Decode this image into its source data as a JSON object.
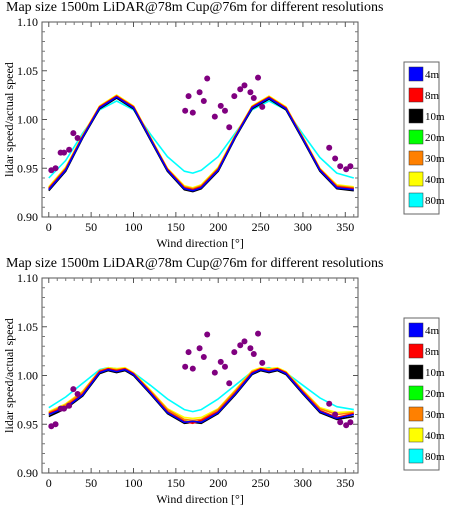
{
  "colors": {
    "4m": "#0000ff",
    "8m": "#ff0000",
    "10m": "#000000",
    "20m": "#00ff00",
    "30m": "#ff8000",
    "40m": "#ffff00",
    "80m": "#00ffff",
    "measured": "#800080"
  },
  "chart_data": [
    {
      "type": "line",
      "title": "Map size 1500m LiDAR@78m Cup@76m for different resolutions",
      "xlabel": "Wind direction [°]",
      "ylabel": "lidar speed/actual speed",
      "xlim": [
        -8,
        365
      ],
      "ylim": [
        0.9,
        1.1
      ],
      "xticks": [
        0,
        50,
        100,
        150,
        200,
        250,
        300,
        350
      ],
      "yticks": [
        0.9,
        0.95,
        1.0,
        1.05,
        1.1
      ],
      "legend": [
        "4m",
        "8m",
        "10m",
        "20m",
        "30m",
        "40m",
        "80m"
      ],
      "legend_position": "right",
      "series": [
        {
          "name": "4m",
          "x": [
            0,
            20,
            40,
            60,
            80,
            100,
            120,
            140,
            160,
            170,
            180,
            200,
            220,
            240,
            260,
            280,
            300,
            320,
            340,
            360
          ],
          "y": [
            0.928,
            0.948,
            0.982,
            1.012,
            1.023,
            1.012,
            0.98,
            0.948,
            0.929,
            0.927,
            0.93,
            0.948,
            0.982,
            1.012,
            1.022,
            1.011,
            0.98,
            0.948,
            0.93,
            0.928
          ]
        },
        {
          "name": "8m",
          "x": [
            0,
            20,
            40,
            60,
            80,
            100,
            120,
            140,
            160,
            170,
            180,
            200,
            220,
            240,
            260,
            280,
            300,
            320,
            340,
            360
          ],
          "y": [
            0.929,
            0.949,
            0.983,
            1.013,
            1.024,
            1.013,
            0.981,
            0.949,
            0.93,
            0.928,
            0.931,
            0.949,
            0.983,
            1.013,
            1.023,
            1.012,
            0.981,
            0.949,
            0.931,
            0.929
          ]
        },
        {
          "name": "10m",
          "x": [
            0,
            20,
            40,
            60,
            80,
            100,
            120,
            140,
            160,
            170,
            180,
            200,
            220,
            240,
            260,
            280,
            300,
            320,
            340,
            360
          ],
          "y": [
            0.927,
            0.947,
            0.981,
            1.011,
            1.022,
            1.011,
            0.979,
            0.947,
            0.928,
            0.926,
            0.929,
            0.947,
            0.981,
            1.011,
            1.021,
            1.01,
            0.979,
            0.947,
            0.929,
            0.927
          ]
        },
        {
          "name": "20m",
          "x": [
            0,
            20,
            40,
            60,
            80,
            100,
            120,
            140,
            160,
            170,
            180,
            200,
            220,
            240,
            260,
            280,
            300,
            320,
            340,
            360
          ],
          "y": [
            0.929,
            0.949,
            0.982,
            1.012,
            1.023,
            1.012,
            0.98,
            0.948,
            0.93,
            0.928,
            0.931,
            0.949,
            0.982,
            1.012,
            1.022,
            1.011,
            0.98,
            0.948,
            0.931,
            0.929
          ]
        },
        {
          "name": "30m",
          "x": [
            0,
            20,
            40,
            60,
            80,
            100,
            120,
            140,
            160,
            170,
            180,
            200,
            220,
            240,
            260,
            280,
            300,
            320,
            340,
            360
          ],
          "y": [
            0.93,
            0.95,
            0.983,
            1.013,
            1.024,
            1.013,
            0.981,
            0.949,
            0.931,
            0.929,
            0.932,
            0.95,
            0.983,
            1.013,
            1.023,
            1.012,
            0.981,
            0.949,
            0.932,
            0.93
          ]
        },
        {
          "name": "40m",
          "x": [
            0,
            20,
            40,
            60,
            80,
            100,
            120,
            140,
            160,
            170,
            180,
            200,
            220,
            240,
            260,
            280,
            300,
            320,
            340,
            360
          ],
          "y": [
            0.931,
            0.951,
            0.984,
            1.014,
            1.025,
            1.014,
            0.982,
            0.95,
            0.932,
            0.93,
            0.933,
            0.951,
            0.984,
            1.014,
            1.024,
            1.013,
            0.982,
            0.95,
            0.933,
            0.931
          ]
        },
        {
          "name": "80m",
          "x": [
            0,
            20,
            40,
            60,
            80,
            100,
            120,
            140,
            160,
            170,
            180,
            200,
            220,
            240,
            260,
            280,
            300,
            320,
            340,
            360
          ],
          "y": [
            0.94,
            0.958,
            0.986,
            1.01,
            1.019,
            1.01,
            0.985,
            0.962,
            0.947,
            0.945,
            0.948,
            0.962,
            0.986,
            1.01,
            1.019,
            1.01,
            0.985,
            0.961,
            0.945,
            0.94
          ]
        }
      ],
      "scatter": {
        "x": [
          3,
          8,
          14,
          18,
          24,
          29,
          34,
          161,
          165,
          170,
          178,
          183,
          187,
          196,
          203,
          208,
          213,
          219,
          226,
          231,
          238,
          242,
          247,
          252,
          331,
          338,
          344,
          351,
          356
        ],
        "y": [
          0.948,
          0.95,
          0.966,
          0.966,
          0.969,
          0.986,
          0.981,
          1.009,
          1.024,
          1.007,
          1.028,
          1.019,
          1.042,
          1.003,
          1.014,
          1.009,
          0.992,
          1.024,
          1.031,
          1.035,
          1.028,
          1.022,
          1.043,
          1.013,
          0.971,
          0.96,
          0.952,
          0.949,
          0.952
        ]
      }
    },
    {
      "type": "line",
      "title": "Map size 1500m LiDAR@78m Cup@76m for different resolutions",
      "xlabel": "Wind direction [°]",
      "ylabel": "lidar speed/actual speed",
      "xlim": [
        -8,
        365
      ],
      "ylim": [
        0.9,
        1.1
      ],
      "xticks": [
        0,
        50,
        100,
        150,
        200,
        250,
        300,
        350
      ],
      "yticks": [
        0.9,
        0.95,
        1.0,
        1.05,
        1.1
      ],
      "legend": [
        "4m",
        "8m",
        "10m",
        "20m",
        "30m",
        "40m",
        "80m"
      ],
      "legend_position": "right",
      "series": [
        {
          "name": "4m",
          "x": [
            0,
            20,
            40,
            60,
            70,
            80,
            90,
            100,
            120,
            140,
            160,
            170,
            180,
            200,
            220,
            240,
            250,
            260,
            270,
            280,
            300,
            320,
            340,
            360
          ],
          "y": [
            0.96,
            0.967,
            0.98,
            1.003,
            1.006,
            1.004,
            1.006,
            1.001,
            0.982,
            0.962,
            0.952,
            0.953,
            0.952,
            0.962,
            0.981,
            1.002,
            1.006,
            1.004,
            1.006,
            1.002,
            0.982,
            0.963,
            0.956,
            0.96
          ]
        },
        {
          "name": "8m",
          "x": [
            0,
            20,
            40,
            60,
            70,
            80,
            90,
            100,
            120,
            140,
            160,
            170,
            180,
            200,
            220,
            240,
            250,
            260,
            270,
            280,
            300,
            320,
            340,
            360
          ],
          "y": [
            0.961,
            0.968,
            0.981,
            1.004,
            1.007,
            1.005,
            1.007,
            1.002,
            0.983,
            0.963,
            0.953,
            0.951,
            0.954,
            0.963,
            0.982,
            1.003,
            1.007,
            1.005,
            1.007,
            1.003,
            0.983,
            0.964,
            0.957,
            0.961
          ]
        },
        {
          "name": "10m",
          "x": [
            0,
            20,
            40,
            60,
            70,
            80,
            90,
            100,
            120,
            140,
            160,
            170,
            180,
            200,
            220,
            240,
            250,
            260,
            270,
            280,
            300,
            320,
            340,
            360
          ],
          "y": [
            0.958,
            0.966,
            0.979,
            1.002,
            1.005,
            1.003,
            1.005,
            1.0,
            0.981,
            0.961,
            0.951,
            0.952,
            0.951,
            0.961,
            0.98,
            1.001,
            1.005,
            1.003,
            1.005,
            1.001,
            0.981,
            0.962,
            0.955,
            0.958
          ]
        },
        {
          "name": "20m",
          "x": [
            0,
            20,
            40,
            60,
            70,
            80,
            90,
            100,
            120,
            140,
            160,
            170,
            180,
            200,
            220,
            240,
            250,
            260,
            270,
            280,
            300,
            320,
            340,
            360
          ],
          "y": [
            0.96,
            0.968,
            0.981,
            1.003,
            1.006,
            1.005,
            1.006,
            1.001,
            0.982,
            0.963,
            0.953,
            0.952,
            0.953,
            0.963,
            0.982,
            1.002,
            1.006,
            1.005,
            1.006,
            1.002,
            0.982,
            0.964,
            0.957,
            0.96
          ]
        },
        {
          "name": "30m",
          "x": [
            0,
            20,
            40,
            60,
            70,
            80,
            90,
            100,
            120,
            140,
            160,
            170,
            180,
            200,
            220,
            240,
            250,
            260,
            270,
            280,
            300,
            320,
            340,
            360
          ],
          "y": [
            0.962,
            0.97,
            0.983,
            1.005,
            1.007,
            1.006,
            1.007,
            1.002,
            0.984,
            0.965,
            0.955,
            0.954,
            0.955,
            0.965,
            0.984,
            1.004,
            1.007,
            1.006,
            1.007,
            1.003,
            0.984,
            0.966,
            0.96,
            0.962
          ]
        },
        {
          "name": "40m",
          "x": [
            0,
            20,
            40,
            60,
            70,
            80,
            90,
            100,
            120,
            140,
            160,
            170,
            180,
            200,
            220,
            240,
            250,
            260,
            270,
            280,
            300,
            320,
            340,
            360
          ],
          "y": [
            0.963,
            0.971,
            0.984,
            1.005,
            1.008,
            1.007,
            1.008,
            1.003,
            0.985,
            0.966,
            0.957,
            0.956,
            0.957,
            0.966,
            0.985,
            1.005,
            1.008,
            1.007,
            1.008,
            1.004,
            0.985,
            0.967,
            0.962,
            0.963
          ]
        },
        {
          "name": "80m",
          "x": [
            0,
            20,
            40,
            60,
            70,
            80,
            90,
            100,
            120,
            140,
            160,
            170,
            180,
            200,
            220,
            240,
            250,
            260,
            270,
            280,
            300,
            320,
            340,
            360
          ],
          "y": [
            0.967,
            0.978,
            0.992,
            1.006,
            1.008,
            1.007,
            1.006,
            1.003,
            0.99,
            0.976,
            0.965,
            0.963,
            0.965,
            0.976,
            0.99,
            1.004,
            1.007,
            1.008,
            1.006,
            1.003,
            0.99,
            0.977,
            0.968,
            0.965
          ]
        }
      ],
      "scatter": {
        "x": [
          3,
          8,
          14,
          18,
          24,
          29,
          34,
          161,
          165,
          170,
          178,
          183,
          187,
          196,
          203,
          208,
          213,
          219,
          226,
          231,
          238,
          242,
          247,
          252,
          331,
          338,
          344,
          351,
          356
        ],
        "y": [
          0.948,
          0.95,
          0.966,
          0.966,
          0.969,
          0.986,
          0.981,
          1.009,
          1.024,
          1.007,
          1.028,
          1.019,
          1.042,
          1.003,
          1.014,
          1.009,
          0.992,
          1.024,
          1.031,
          1.035,
          1.028,
          1.022,
          1.043,
          1.013,
          0.971,
          0.96,
          0.952,
          0.949,
          0.952
        ]
      }
    }
  ]
}
